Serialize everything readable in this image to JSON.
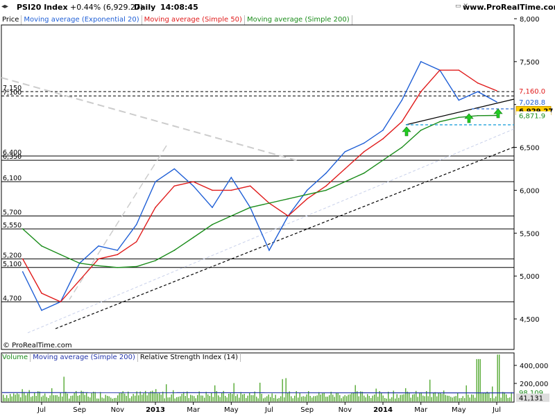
{
  "header": {
    "symbol": "PSI20 Index",
    "change": "+0.44% (6,929.27)",
    "period": "Daily",
    "time": "14:08:45",
    "site": "www.ProRealTime.com"
  },
  "legend": {
    "price": "Price",
    "ema20": "Moving average (Exponential 20)",
    "sma50": "Moving average (Simple 50)",
    "sma200": "Moving average (Simple 200)"
  },
  "volume_legend": {
    "volume": "Volume",
    "vol_sma200": "Moving average (Simple 200)",
    "rsi": "Relative Strength Index (14)"
  },
  "copyright": "© ProRealTime.com",
  "colors": {
    "ema20": "#1f5fd6",
    "sma50": "#e01b1b",
    "sma200": "#1a8c1a",
    "price_badge": "#ffcc00",
    "volume_bar": "#55aa33"
  },
  "chart_data": [
    {
      "type": "line",
      "title": "PSI20 Index",
      "ylim": [
        4300,
        8150
      ],
      "y_ticks": [
        "8,000",
        "7,500",
        "7,000",
        "6,500",
        "6,000",
        "5,500",
        "5,000",
        "4,500"
      ],
      "x_ticks": [
        "Jul",
        "Sep",
        "Nov",
        "2013",
        "Mar",
        "May",
        "Jul",
        "Sep",
        "Nov",
        "2014",
        "Mar",
        "May",
        "Jul"
      ],
      "level_labels": [
        "7,150",
        "7,100",
        "6,400",
        "6,350",
        "6,100",
        "5,700",
        "5,550",
        "5,200",
        "5,100",
        "4,700"
      ],
      "right_labels": {
        "sma50": "7,160.0",
        "ema20": "7,028.8",
        "last": "6,929.27",
        "sma200": "6,871.9"
      },
      "series": [
        {
          "name": "Moving average (Exponential 20)",
          "x": [
            "2012-06",
            "2012-07",
            "2012-08",
            "2012-09",
            "2012-10",
            "2012-11",
            "2012-12",
            "2013-01",
            "2013-02",
            "2013-03",
            "2013-04",
            "2013-05",
            "2013-06",
            "2013-07",
            "2013-08",
            "2013-09",
            "2013-10",
            "2013-11",
            "2013-12",
            "2014-01",
            "2014-02",
            "2014-03",
            "2014-04",
            "2014-05",
            "2014-06",
            "2014-07"
          ],
          "values": [
            5050,
            4600,
            4700,
            5150,
            5350,
            5300,
            5600,
            6100,
            6250,
            6050,
            5800,
            6150,
            5800,
            5300,
            5700,
            6000,
            6200,
            6450,
            6550,
            6700,
            7050,
            7500,
            7400,
            7050,
            7150,
            7030
          ]
        },
        {
          "name": "Moving average (Simple 50)",
          "x": [
            "2012-06",
            "2012-07",
            "2012-08",
            "2012-09",
            "2012-10",
            "2012-11",
            "2012-12",
            "2013-01",
            "2013-02",
            "2013-03",
            "2013-04",
            "2013-05",
            "2013-06",
            "2013-07",
            "2013-08",
            "2013-09",
            "2013-10",
            "2013-11",
            "2013-12",
            "2014-01",
            "2014-02",
            "2014-03",
            "2014-04",
            "2014-05",
            "2014-06",
            "2014-07"
          ],
          "values": [
            5200,
            4800,
            4700,
            4950,
            5200,
            5250,
            5400,
            5800,
            6050,
            6100,
            6000,
            6000,
            6050,
            5850,
            5700,
            5900,
            6050,
            6250,
            6450,
            6600,
            6800,
            7150,
            7400,
            7400,
            7250,
            7160
          ]
        },
        {
          "name": "Moving average (Simple 200)",
          "x": [
            "2012-06",
            "2012-07",
            "2012-08",
            "2012-09",
            "2012-10",
            "2012-11",
            "2012-12",
            "2013-01",
            "2013-02",
            "2013-03",
            "2013-04",
            "2013-05",
            "2013-06",
            "2013-07",
            "2013-08",
            "2013-09",
            "2013-10",
            "2013-11",
            "2013-12",
            "2014-01",
            "2014-02",
            "2014-03",
            "2014-04",
            "2014-05",
            "2014-06",
            "2014-07"
          ],
          "values": [
            5550,
            5350,
            5250,
            5150,
            5120,
            5100,
            5110,
            5180,
            5300,
            5450,
            5600,
            5700,
            5800,
            5850,
            5900,
            5950,
            6000,
            6100,
            6200,
            6350,
            6500,
            6700,
            6800,
            6850,
            6870,
            6872
          ]
        }
      ]
    },
    {
      "type": "bar",
      "title": "Volume",
      "y_ticks": [
        "400,000",
        "200,000"
      ],
      "right_labels": {
        "vol_sma200": "98,109",
        "last": "41,131"
      }
    }
  ]
}
